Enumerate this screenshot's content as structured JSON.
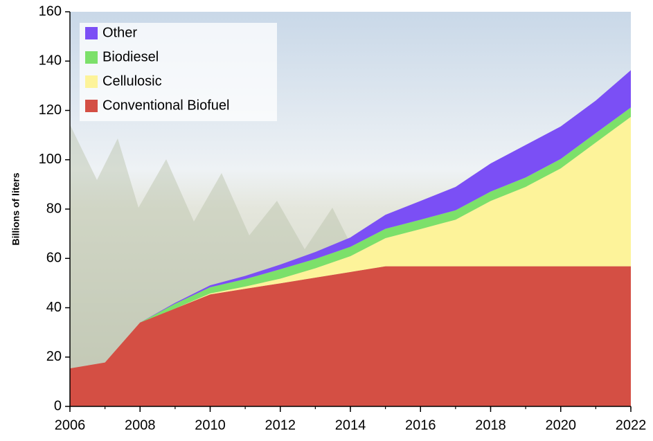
{
  "chart_data": {
    "type": "stacked_area",
    "y_label": "Billions of liters",
    "x": [
      2006,
      2007,
      2008,
      2009,
      2010,
      2011,
      2012,
      2013,
      2014,
      2015,
      2016,
      2017,
      2018,
      2019,
      2020,
      2021,
      2022
    ],
    "series": [
      {
        "name": "Conventional Biofuel",
        "color": "#d44f44",
        "values": [
          15.4,
          17.8,
          34,
          39.7,
          45.4,
          47.7,
          49.9,
          52.2,
          54.5,
          56.8,
          56.8,
          56.8,
          56.8,
          56.8,
          56.8,
          56.8,
          56.8
        ]
      },
      {
        "name": "Cellulosic",
        "color": "#fdf39a",
        "values": [
          0,
          0,
          0,
          0,
          0.4,
          0.9,
          1.9,
          3.8,
          6.4,
          11.4,
          15.1,
          18.9,
          26.5,
          32.2,
          39.7,
          50.2,
          60.6
        ]
      },
      {
        "name": "Biodiesel",
        "color": "#7ce06a",
        "values": [
          0,
          0,
          0,
          1.9,
          2.5,
          3,
          3.8,
          3.8,
          3.8,
          3.8,
          3.8,
          3.8,
          3.8,
          3.8,
          3.8,
          3.8,
          3.8
        ]
      },
      {
        "name": "Other",
        "color": "#7b4ff5",
        "values": [
          0,
          0,
          0,
          0.4,
          0.8,
          1.3,
          1.9,
          2.8,
          3.8,
          5.7,
          7.6,
          9.5,
          11.4,
          13.2,
          13.2,
          13.2,
          15.1
        ]
      }
    ],
    "xlim": [
      2006,
      2022
    ],
    "xticks": [
      2006,
      2008,
      2010,
      2012,
      2014,
      2016,
      2018,
      2020,
      2022
    ],
    "ylim": [
      0,
      160
    ],
    "yticks": [
      0,
      20,
      40,
      60,
      80,
      100,
      120,
      140,
      160
    ]
  }
}
